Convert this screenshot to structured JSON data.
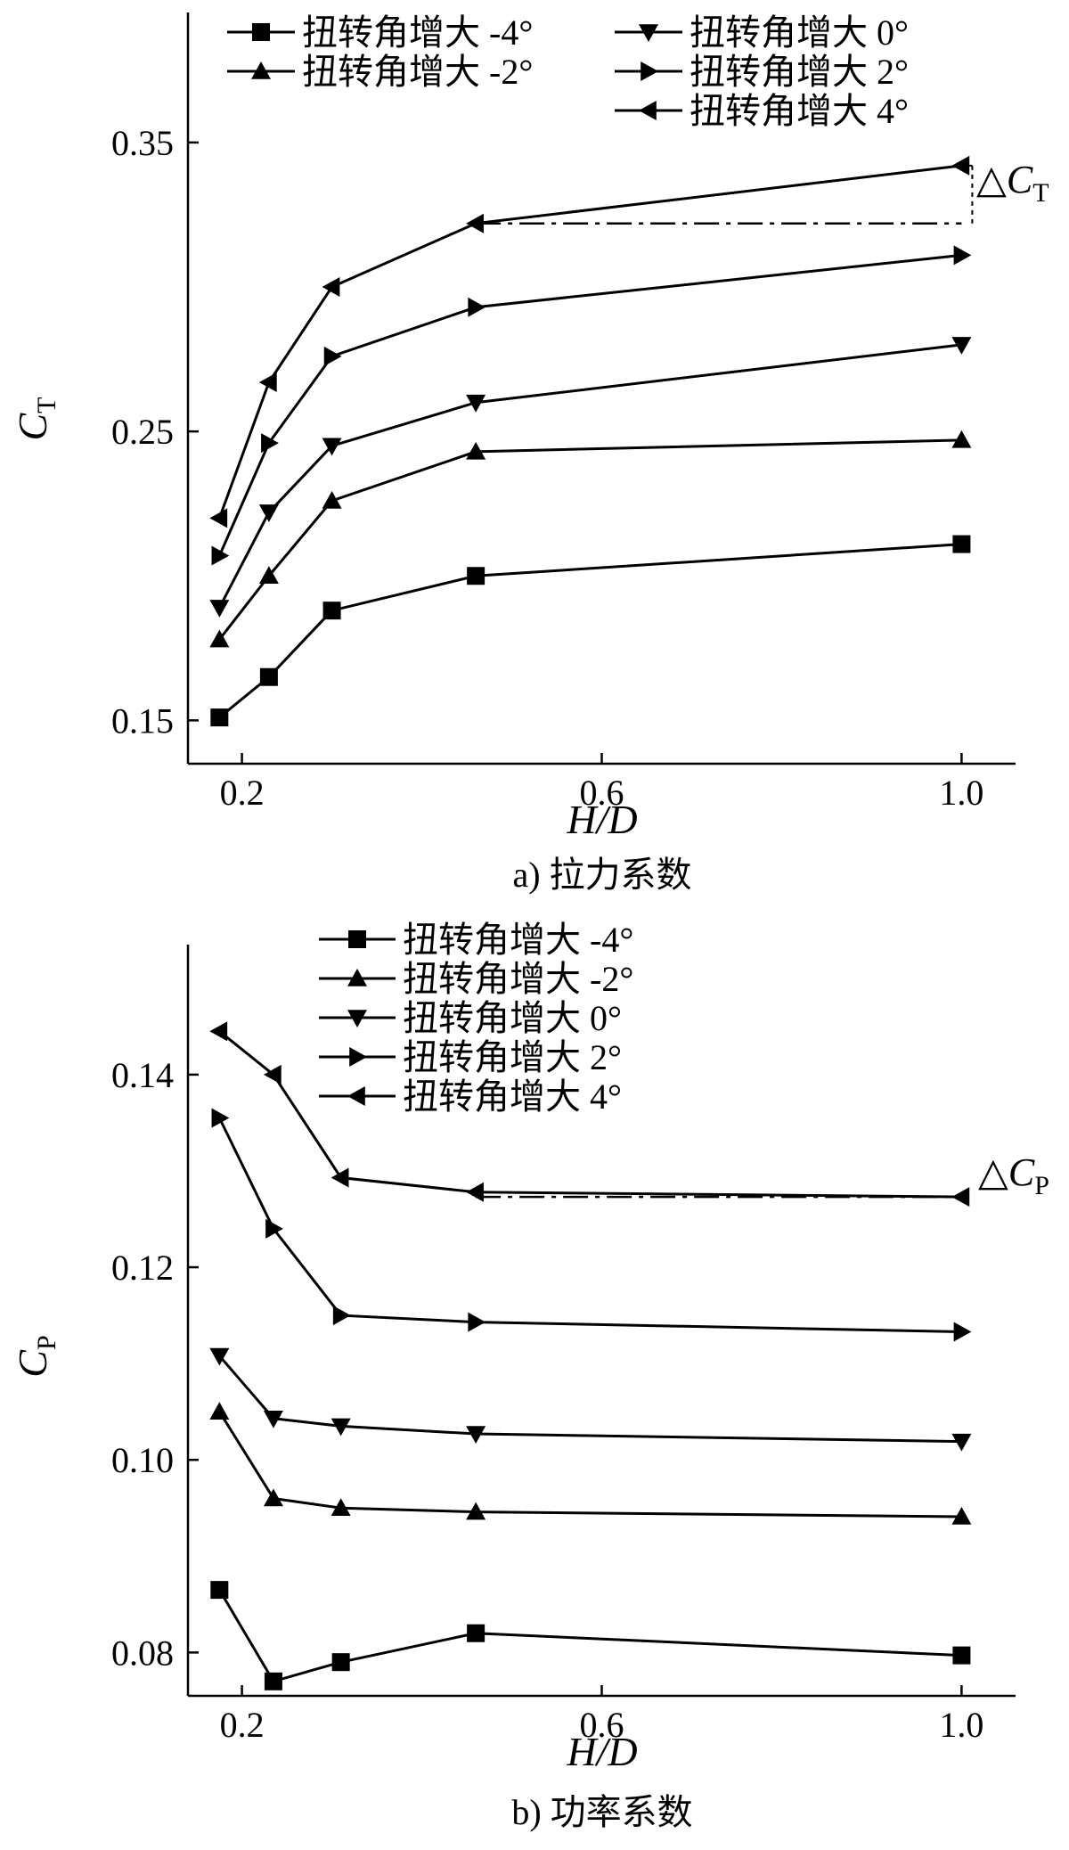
{
  "chart_data": [
    {
      "type": "line",
      "xlabel": "H/D",
      "ylabel": "C_T",
      "ylabel_main": "C",
      "ylabel_sub": "T",
      "xlim": [
        0.14,
        1.06
      ],
      "ylim": [
        0.135,
        0.395
      ],
      "xticks": [
        0.2,
        0.6,
        1.0
      ],
      "xtick_labels": [
        "0.2",
        "0.6",
        "1.0"
      ],
      "yticks": [
        0.15,
        0.25,
        0.35
      ],
      "ytick_labels": [
        "0.15",
        "0.25",
        "0.35"
      ],
      "caption": "a)  拉力系数",
      "legend_layout": "two columns, top",
      "annotation": {
        "text": "△",
        "italic": "C",
        "sub": "T",
        "x": 1.0,
        "from": 0.322,
        "to": 0.342
      },
      "series": [
        {
          "name": "扭转角增大 -4°",
          "marker": "square",
          "x": [
            0.175,
            0.23,
            0.3,
            0.46,
            1.0
          ],
          "y": [
            0.151,
            0.165,
            0.188,
            0.2,
            0.211
          ]
        },
        {
          "name": "扭转角增大 0°",
          "marker": "triangle-down",
          "x": [
            0.175,
            0.23,
            0.3,
            0.46,
            1.0
          ],
          "y": [
            0.189,
            0.222,
            0.245,
            0.26,
            0.28
          ]
        },
        {
          "name": "扭转角增大 -2°",
          "marker": "triangle-up",
          "x": [
            0.175,
            0.23,
            0.3,
            0.46,
            1.0
          ],
          "y": [
            0.178,
            0.2,
            0.226,
            0.243,
            0.247
          ]
        },
        {
          "name": "扭转角增大 2°",
          "marker": "triangle-right",
          "x": [
            0.175,
            0.23,
            0.3,
            0.46,
            1.0
          ],
          "y": [
            0.207,
            0.246,
            0.276,
            0.293,
            0.311
          ]
        },
        {
          "name": "扭转角增大 4°",
          "marker": "triangle-left",
          "x": [
            0.175,
            0.23,
            0.3,
            0.46,
            1.0
          ],
          "y": [
            0.22,
            0.267,
            0.3,
            0.322,
            0.342
          ]
        }
      ]
    },
    {
      "type": "line",
      "xlabel": "H/D",
      "ylabel": "C_P",
      "ylabel_main": "C",
      "ylabel_sub": "P",
      "xlim": [
        0.14,
        1.06
      ],
      "ylim": [
        0.0755,
        0.1535
      ],
      "xticks": [
        0.2,
        0.6,
        1.0
      ],
      "xtick_labels": [
        "0.2",
        "0.6",
        "1.0"
      ],
      "yticks": [
        0.08,
        0.1,
        0.12,
        0.14
      ],
      "ytick_labels": [
        "0.08",
        "0.10",
        "0.12",
        "0.14"
      ],
      "caption": "b)  功率系数",
      "legend_layout": "one column, top",
      "annotation": {
        "text": "△",
        "italic": "C",
        "sub": "P",
        "x": 1.0,
        "from": 0.1273,
        "to": 0.1285
      },
      "series": [
        {
          "name": "扭转角增大 -4°",
          "marker": "square",
          "x": [
            0.175,
            0.235,
            0.31,
            0.46,
            1.0
          ],
          "y": [
            0.0865,
            0.077,
            0.079,
            0.082,
            0.0797
          ]
        },
        {
          "name": "扭转角增大 -2°",
          "marker": "triangle-up",
          "x": [
            0.175,
            0.235,
            0.31,
            0.46,
            1.0
          ],
          "y": [
            0.105,
            0.096,
            0.095,
            0.0946,
            0.0941
          ]
        },
        {
          "name": "扭转角增大 0°",
          "marker": "triangle-down",
          "x": [
            0.175,
            0.235,
            0.31,
            0.46,
            1.0
          ],
          "y": [
            0.1108,
            0.1043,
            0.1035,
            0.1027,
            0.1019
          ]
        },
        {
          "name": "扭转角增大 2°",
          "marker": "triangle-right",
          "x": [
            0.175,
            0.235,
            0.31,
            0.46,
            1.0
          ],
          "y": [
            0.1355,
            0.124,
            0.115,
            0.1143,
            0.1133
          ]
        },
        {
          "name": "扭转角增大 4°",
          "marker": "triangle-left",
          "x": [
            0.175,
            0.235,
            0.31,
            0.46,
            1.0
          ],
          "y": [
            0.1445,
            0.14,
            0.1293,
            0.1278,
            0.1273
          ]
        }
      ]
    }
  ]
}
